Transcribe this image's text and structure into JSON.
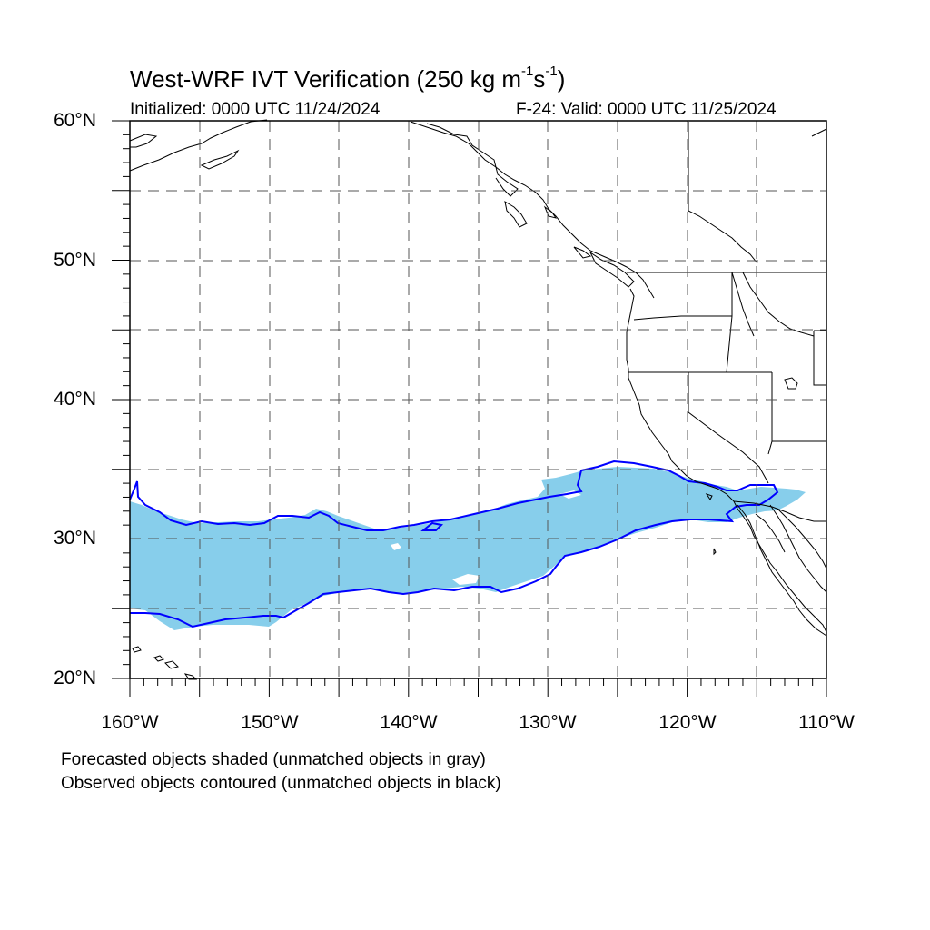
{
  "title": {
    "main_prefix": "West-WRF IVT Verification (250 kg m",
    "exp1": "-1",
    "mid": "s",
    "exp2": "-1",
    "suffix": ")"
  },
  "initialized": "Initialized: 0000 UTC 11/24/2024",
  "valid": "F-24: Valid: 0000 UTC 11/25/2024",
  "lat_labels": [
    "60°N",
    "50°N",
    "40°N",
    "30°N",
    "20°N"
  ],
  "lon_labels": [
    "160°W",
    "150°W",
    "140°W",
    "130°W",
    "120°W",
    "110°W"
  ],
  "notes": [
    "Forecasted objects shaded (unmatched objects in gray)",
    "Observed objects contoured (unmatched objects in black)"
  ],
  "colors": {
    "forecast_fill": "#87ceeb",
    "observed_contour": "#0000ff",
    "coastline": "#000000",
    "grid": "#555555"
  }
}
